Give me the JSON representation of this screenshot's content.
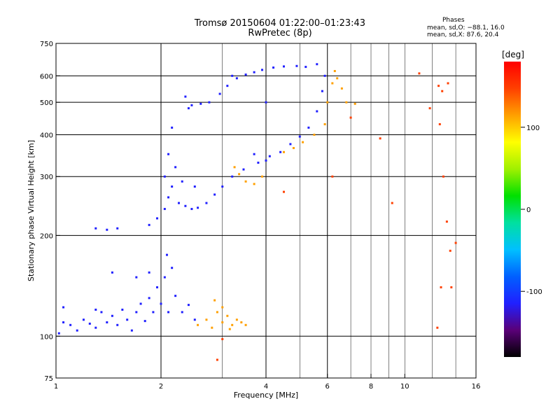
{
  "chart_data": {
    "type": "scatter",
    "title_line1": "Tromsø 20150604 01:22:00–01:23:43",
    "title_line2": "RwPretec (8p)",
    "xlabel": "Frequency [MHz]",
    "ylabel": "Stationary phase Virtual Height [km]",
    "x_scale": "log",
    "y_scale": "log",
    "xlim": [
      1,
      16
    ],
    "ylim": [
      75,
      750
    ],
    "x_ticks": [
      1,
      2,
      4,
      6,
      8,
      10,
      16
    ],
    "y_ticks": [
      75,
      100,
      200,
      300,
      400,
      500,
      600,
      750
    ],
    "x_major_lines": [
      2,
      4,
      6
    ],
    "y_major_lines": [
      100,
      200,
      300,
      400,
      500,
      600
    ],
    "x_minor_lines": [
      3,
      5,
      7,
      8,
      9,
      10,
      12,
      14
    ],
    "grid": true,
    "phases_label": "Phases",
    "phases_stats": [
      "mean, sd,O: −88.1, 16.0",
      "mean, sd,X:  87.6, 20.4"
    ],
    "colorbar": {
      "label": "[deg]",
      "range": [
        -180,
        180
      ],
      "ticks": [
        100,
        0,
        -100
      ],
      "colors": [
        "#000000",
        "#5a0078",
        "#2020ff",
        "#0060ff",
        "#00c0ff",
        "#00e0a0",
        "#00e000",
        "#a0f000",
        "#ffff00",
        "#ffa000",
        "#ff4000",
        "#ff0000"
      ]
    },
    "series": [
      {
        "trace": "low-band-blue",
        "phase": -100,
        "points": [
          [
            1.02,
            102
          ],
          [
            1.05,
            110
          ],
          [
            1.1,
            108
          ],
          [
            1.15,
            104
          ],
          [
            1.2,
            112
          ],
          [
            1.25,
            109
          ],
          [
            1.3,
            106
          ],
          [
            1.35,
            118
          ],
          [
            1.4,
            110
          ],
          [
            1.45,
            115
          ],
          [
            1.5,
            108
          ],
          [
            1.55,
            120
          ],
          [
            1.6,
            112
          ],
          [
            1.65,
            104
          ],
          [
            1.7,
            118
          ],
          [
            1.75,
            125
          ],
          [
            1.8,
            111
          ],
          [
            1.85,
            130
          ],
          [
            1.9,
            118
          ],
          [
            1.95,
            140
          ],
          [
            2.0,
            125
          ],
          [
            2.05,
            150
          ],
          [
            2.1,
            118
          ],
          [
            2.15,
            160
          ],
          [
            2.2,
            132
          ],
          [
            2.3,
            118
          ],
          [
            2.4,
            124
          ],
          [
            2.5,
            112
          ],
          [
            1.45,
            155
          ],
          [
            1.7,
            150
          ],
          [
            1.85,
            155
          ],
          [
            2.08,
            175
          ],
          [
            1.05,
            122
          ],
          [
            1.3,
            120
          ]
        ]
      },
      {
        "trace": "low-band-yellow",
        "phase": 100,
        "points": [
          [
            2.55,
            108
          ],
          [
            2.7,
            112
          ],
          [
            2.8,
            106
          ],
          [
            2.9,
            118
          ],
          [
            3.0,
            110
          ],
          [
            3.1,
            115
          ],
          [
            3.2,
            108
          ],
          [
            3.3,
            112
          ],
          [
            3.4,
            110
          ],
          [
            3.0,
            122
          ],
          [
            2.85,
            128
          ],
          [
            3.15,
            105
          ],
          [
            3.5,
            108
          ]
        ]
      },
      {
        "trace": "f-layer-blue",
        "phase": -100,
        "points": [
          [
            1.3,
            210
          ],
          [
            1.4,
            208
          ],
          [
            1.5,
            210
          ],
          [
            1.85,
            215
          ],
          [
            1.95,
            225
          ],
          [
            2.05,
            240
          ],
          [
            2.1,
            260
          ],
          [
            2.15,
            280
          ],
          [
            2.25,
            250
          ],
          [
            2.35,
            245
          ],
          [
            2.45,
            240
          ],
          [
            2.55,
            242
          ],
          [
            2.7,
            250
          ],
          [
            2.85,
            265
          ],
          [
            3.0,
            280
          ],
          [
            3.2,
            300
          ],
          [
            3.45,
            315
          ],
          [
            3.8,
            330
          ],
          [
            4.1,
            345
          ],
          [
            4.4,
            355
          ],
          [
            4.7,
            375
          ],
          [
            5.0,
            395
          ],
          [
            5.3,
            420
          ],
          [
            5.6,
            470
          ],
          [
            5.8,
            540
          ],
          [
            5.9,
            600
          ],
          [
            2.05,
            300
          ],
          [
            2.1,
            350
          ],
          [
            2.15,
            420
          ],
          [
            2.2,
            320
          ],
          [
            2.3,
            290
          ],
          [
            2.5,
            280
          ],
          [
            3.7,
            350
          ],
          [
            4.0,
            335
          ]
        ]
      },
      {
        "trace": "f-layer-yellow",
        "phase": 100,
        "points": [
          [
            3.25,
            320
          ],
          [
            3.35,
            305
          ],
          [
            3.5,
            290
          ],
          [
            3.7,
            285
          ],
          [
            3.9,
            300
          ],
          [
            4.5,
            355
          ],
          [
            4.8,
            365
          ],
          [
            5.1,
            380
          ],
          [
            5.5,
            400
          ],
          [
            5.9,
            430
          ],
          [
            6.0,
            500
          ],
          [
            6.2,
            570
          ],
          [
            6.3,
            620
          ],
          [
            6.4,
            590
          ],
          [
            6.6,
            550
          ],
          [
            6.8,
            500
          ],
          [
            7.2,
            495
          ]
        ]
      },
      {
        "trace": "upper-blue",
        "phase": -100,
        "points": [
          [
            2.35,
            520
          ],
          [
            2.45,
            490
          ],
          [
            2.6,
            495
          ],
          [
            2.75,
            500
          ],
          [
            2.95,
            530
          ],
          [
            3.1,
            560
          ],
          [
            3.3,
            590
          ],
          [
            3.5,
            605
          ],
          [
            3.7,
            615
          ],
          [
            3.9,
            625
          ],
          [
            4.2,
            635
          ],
          [
            4.5,
            640
          ],
          [
            4.9,
            642
          ],
          [
            5.2,
            638
          ],
          [
            5.6,
            650
          ],
          [
            2.4,
            480
          ],
          [
            3.2,
            600
          ],
          [
            4.0,
            500
          ]
        ]
      },
      {
        "trace": "scattered",
        "phase": 150,
        "points": [
          [
            7.0,
            450
          ],
          [
            9.2,
            250
          ],
          [
            11,
            610
          ],
          [
            11.8,
            480
          ],
          [
            12.5,
            560
          ],
          [
            12.8,
            540
          ],
          [
            12.6,
            430
          ],
          [
            12.9,
            300
          ],
          [
            13.2,
            220
          ],
          [
            13.5,
            180
          ],
          [
            14.0,
            190
          ],
          [
            13.6,
            140
          ],
          [
            12.7,
            140
          ],
          [
            12.4,
            106
          ],
          [
            13.3,
            570
          ],
          [
            8.5,
            390
          ],
          [
            6.2,
            300
          ],
          [
            4.5,
            270
          ],
          [
            2.9,
            85
          ],
          [
            3.0,
            98
          ]
        ]
      }
    ]
  }
}
